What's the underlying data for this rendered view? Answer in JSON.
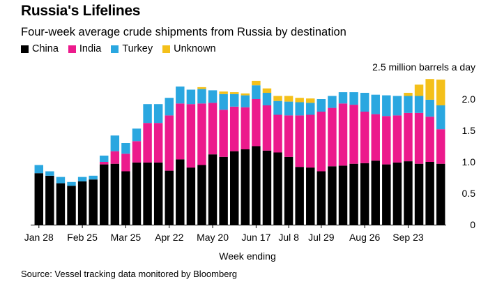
{
  "chart_data": {
    "type": "bar",
    "stacked": true,
    "title": "Russia's Lifelines",
    "subtitle": "Four-week average crude shipments from Russia by destination",
    "unit_label": "2.5 million barrels a day",
    "xlabel": "Week ending",
    "ylabel": "",
    "ylim": [
      0,
      2.5
    ],
    "yticks": [
      {
        "value": 0,
        "label": "0"
      },
      {
        "value": 0.5,
        "label": "0.5"
      },
      {
        "value": 1.0,
        "label": "1.0"
      },
      {
        "value": 1.5,
        "label": "1.5"
      },
      {
        "value": 2.0,
        "label": "2.0"
      }
    ],
    "xtick_labels": [
      {
        "index": 0,
        "label": "Jan 28"
      },
      {
        "index": 4,
        "label": "Feb 25"
      },
      {
        "index": 8,
        "label": "Mar 25"
      },
      {
        "index": 12,
        "label": "Apr 22"
      },
      {
        "index": 16,
        "label": "May 20"
      },
      {
        "index": 20,
        "label": "Jun 17"
      },
      {
        "index": 23,
        "label": "Jul 8"
      },
      {
        "index": 26,
        "label": "Jul 29"
      },
      {
        "index": 30,
        "label": "Aug 26"
      },
      {
        "index": 34,
        "label": "Sep 23"
      }
    ],
    "legend_position": "top-left",
    "grid": false,
    "categories": [
      "Jan 28",
      "Feb 4",
      "Feb 11",
      "Feb 18",
      "Feb 25",
      "Mar 4",
      "Mar 11",
      "Mar 18",
      "Mar 25",
      "Apr 1",
      "Apr 8",
      "Apr 15",
      "Apr 22",
      "Apr 29",
      "May 6",
      "May 13",
      "May 20",
      "May 27",
      "Jun 3",
      "Jun 10",
      "Jun 17",
      "Jun 24",
      "Jul 1",
      "Jul 8",
      "Jul 15",
      "Jul 22",
      "Jul 29",
      "Aug 5",
      "Aug 12",
      "Aug 19",
      "Aug 26",
      "Sep 2",
      "Sep 9",
      "Sep 16",
      "Sep 23",
      "Sep 30",
      "Oct 7",
      "Oct 14"
    ],
    "series": [
      {
        "name": "China",
        "color": "#000000",
        "values": [
          0.82,
          0.78,
          0.66,
          0.62,
          0.69,
          0.72,
          0.96,
          0.97,
          0.85,
          0.99,
          0.99,
          0.99,
          0.86,
          1.04,
          0.91,
          0.95,
          1.12,
          1.08,
          1.17,
          1.2,
          1.25,
          1.18,
          1.15,
          1.08,
          0.92,
          0.91,
          0.85,
          0.93,
          0.94,
          0.97,
          0.98,
          1.02,
          0.96,
          0.99,
          1.01,
          0.97,
          1.0,
          0.97
        ]
      },
      {
        "name": "India",
        "color": "#ec1a8c",
        "values": [
          0.0,
          0.0,
          0.0,
          0.0,
          0.0,
          0.0,
          0.04,
          0.2,
          0.28,
          0.34,
          0.63,
          0.63,
          0.88,
          0.89,
          1.01,
          0.98,
          0.82,
          0.75,
          0.71,
          0.67,
          0.75,
          0.72,
          0.6,
          0.66,
          0.82,
          0.84,
          0.95,
          0.93,
          0.99,
          0.94,
          0.82,
          0.74,
          0.77,
          0.75,
          0.77,
          0.81,
          0.72,
          0.55
        ]
      },
      {
        "name": "Turkey",
        "color": "#2aa7e0",
        "values": [
          0.13,
          0.07,
          0.1,
          0.06,
          0.07,
          0.06,
          0.1,
          0.25,
          0.17,
          0.2,
          0.3,
          0.3,
          0.28,
          0.27,
          0.23,
          0.23,
          0.2,
          0.25,
          0.2,
          0.19,
          0.22,
          0.2,
          0.22,
          0.22,
          0.21,
          0.19,
          0.2,
          0.19,
          0.18,
          0.2,
          0.3,
          0.31,
          0.33,
          0.31,
          0.27,
          0.27,
          0.27,
          0.38
        ]
      },
      {
        "name": "Unknown",
        "color": "#f4c01a",
        "values": [
          0.0,
          0.0,
          0.0,
          0.0,
          0.0,
          0.0,
          0.0,
          0.0,
          0.0,
          0.0,
          0.0,
          0.0,
          0.0,
          0.0,
          0.0,
          0.03,
          0.0,
          0.04,
          0.03,
          0.03,
          0.07,
          0.07,
          0.08,
          0.09,
          0.07,
          0.07,
          0.0,
          0.0,
          0.0,
          0.0,
          0.0,
          0.0,
          0.0,
          0.0,
          0.05,
          0.18,
          0.33,
          0.41
        ]
      }
    ]
  },
  "source": "Source: Vessel tracking data monitored by Bloomberg"
}
